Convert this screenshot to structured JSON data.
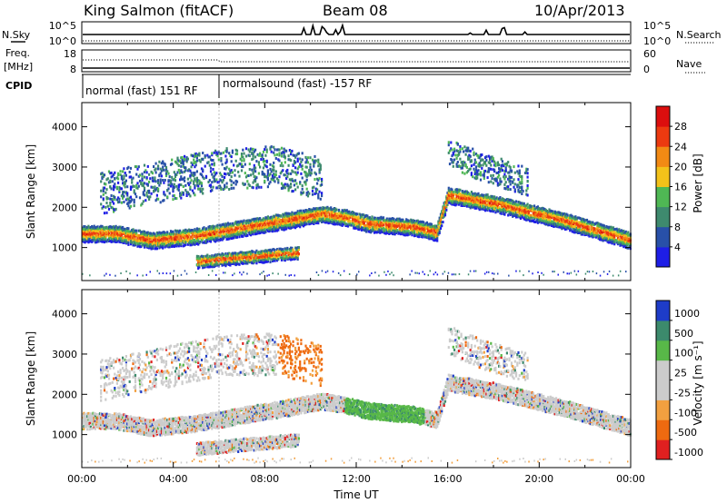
{
  "header": {
    "station": "King Salmon (fitACF)",
    "beam": "Beam 08",
    "date": "10/Apr/2013"
  },
  "summary": {
    "nsky_label": "N.Sky",
    "nsearch_label": "N.Search",
    "freq_label_top": "Freq.",
    "freq_label_unit": "[MHz]",
    "nave_label": "Nave",
    "cpid_label": "CPID",
    "count_tick_top": "10^5",
    "count_tick_bottom": "10^0",
    "freq_ticks": [
      "18",
      "8"
    ],
    "nave_ticks": [
      "60",
      "0"
    ],
    "cpid_segments": [
      {
        "label": "normal (fast) 151 RF",
        "start_h": 0,
        "end_h": 6
      },
      {
        "label": "normalsound (fast) -157 RF",
        "start_h": 6,
        "end_h": 24
      }
    ]
  },
  "chart_data": [
    {
      "type": "heatmap",
      "name": "power",
      "ylabel": "Slant Range [km]",
      "ylim": [
        180,
        4600
      ],
      "yticks": [
        "1000",
        "2000",
        "3000",
        "4000"
      ],
      "xlim": [
        0,
        24
      ],
      "colorbar_label": "Power [dB]",
      "colorbar_ticks": [
        "4",
        "8",
        "12",
        "16",
        "20",
        "24",
        "28"
      ],
      "colors": [
        "#1e1ee6",
        "#2850a8",
        "#3e8a6e",
        "#4fb854",
        "#f3c21a",
        "#f28a14",
        "#ec3a10",
        "#dc0e0e"
      ],
      "bands": [
        {
          "t": [
            0.0,
            1.5,
            3.0,
            5.0,
            7.0,
            9.0,
            10.5,
            11.5,
            12.5,
            14.5,
            15.5,
            16.0,
            18.0,
            21.0,
            24.0
          ],
          "r": [
            1350,
            1350,
            1180,
            1290,
            1490,
            1680,
            1840,
            1750,
            1600,
            1510,
            1380,
            2300,
            2100,
            1680,
            1180
          ],
          "w": 200,
          "d": 0.85
        },
        {
          "t": [
            5.0,
            6.5,
            8.0,
            9.5
          ],
          "r": [
            650,
            730,
            800,
            880
          ],
          "w": 150,
          "d": 0.8
        },
        {
          "t": [
            0.8,
            3.5,
            6.0,
            8.5,
            10.5
          ],
          "r": [
            2350,
            2650,
            2950,
            3000,
            2700
          ],
          "w": 500,
          "d": 0.2
        },
        {
          "t": [
            16.0,
            17.5,
            19.5
          ],
          "r": [
            3350,
            3000,
            2650
          ],
          "w": 350,
          "d": 0.25
        }
      ]
    },
    {
      "type": "heatmap",
      "name": "velocity",
      "ylabel": "Slant Range [km]",
      "ylim": [
        180,
        4600
      ],
      "yticks": [
        "1000",
        "2000",
        "3000",
        "4000"
      ],
      "xlim": [
        0,
        24
      ],
      "xticks": [
        "00:00",
        "04:00",
        "08:00",
        "12:00",
        "16:00",
        "20:00",
        "00:00"
      ],
      "xlabel": "Time UT",
      "colorbar_label": "Velocity [m s⁻¹]",
      "colorbar_ticks": [
        "1000",
        "500",
        "100",
        "25",
        "-25",
        "-100",
        "-500",
        "-1000"
      ],
      "colors": [
        "#1e3cc8",
        "#3c8a6c",
        "#58b848",
        "#cccccc",
        "#cccccc",
        "#f2a040",
        "#ee6a10",
        "#e02020"
      ],
      "bands": [
        {
          "t": [
            0.0,
            1.5,
            3.0,
            5.0,
            7.0,
            9.0,
            10.5,
            11.5,
            12.5,
            14.5,
            15.5,
            16.0,
            18.0,
            21.0,
            24.0
          ],
          "r": [
            1350,
            1350,
            1180,
            1290,
            1490,
            1680,
            1840,
            1750,
            1600,
            1510,
            1380,
            2300,
            2100,
            1680,
            1180
          ],
          "w": 200,
          "d": 0.85
        },
        {
          "t": [
            5.0,
            6.5,
            8.0,
            9.5
          ],
          "r": [
            650,
            730,
            800,
            880
          ],
          "w": 150,
          "d": 0.8
        },
        {
          "t": [
            0.8,
            3.5,
            6.0,
            8.5,
            10.5
          ],
          "r": [
            2350,
            2650,
            2950,
            3000,
            2700
          ],
          "w": 500,
          "d": 0.2
        },
        {
          "t": [
            16.0,
            17.5,
            19.5
          ],
          "r": [
            3350,
            3000,
            2650
          ],
          "w": 350,
          "d": 0.25
        }
      ]
    }
  ]
}
